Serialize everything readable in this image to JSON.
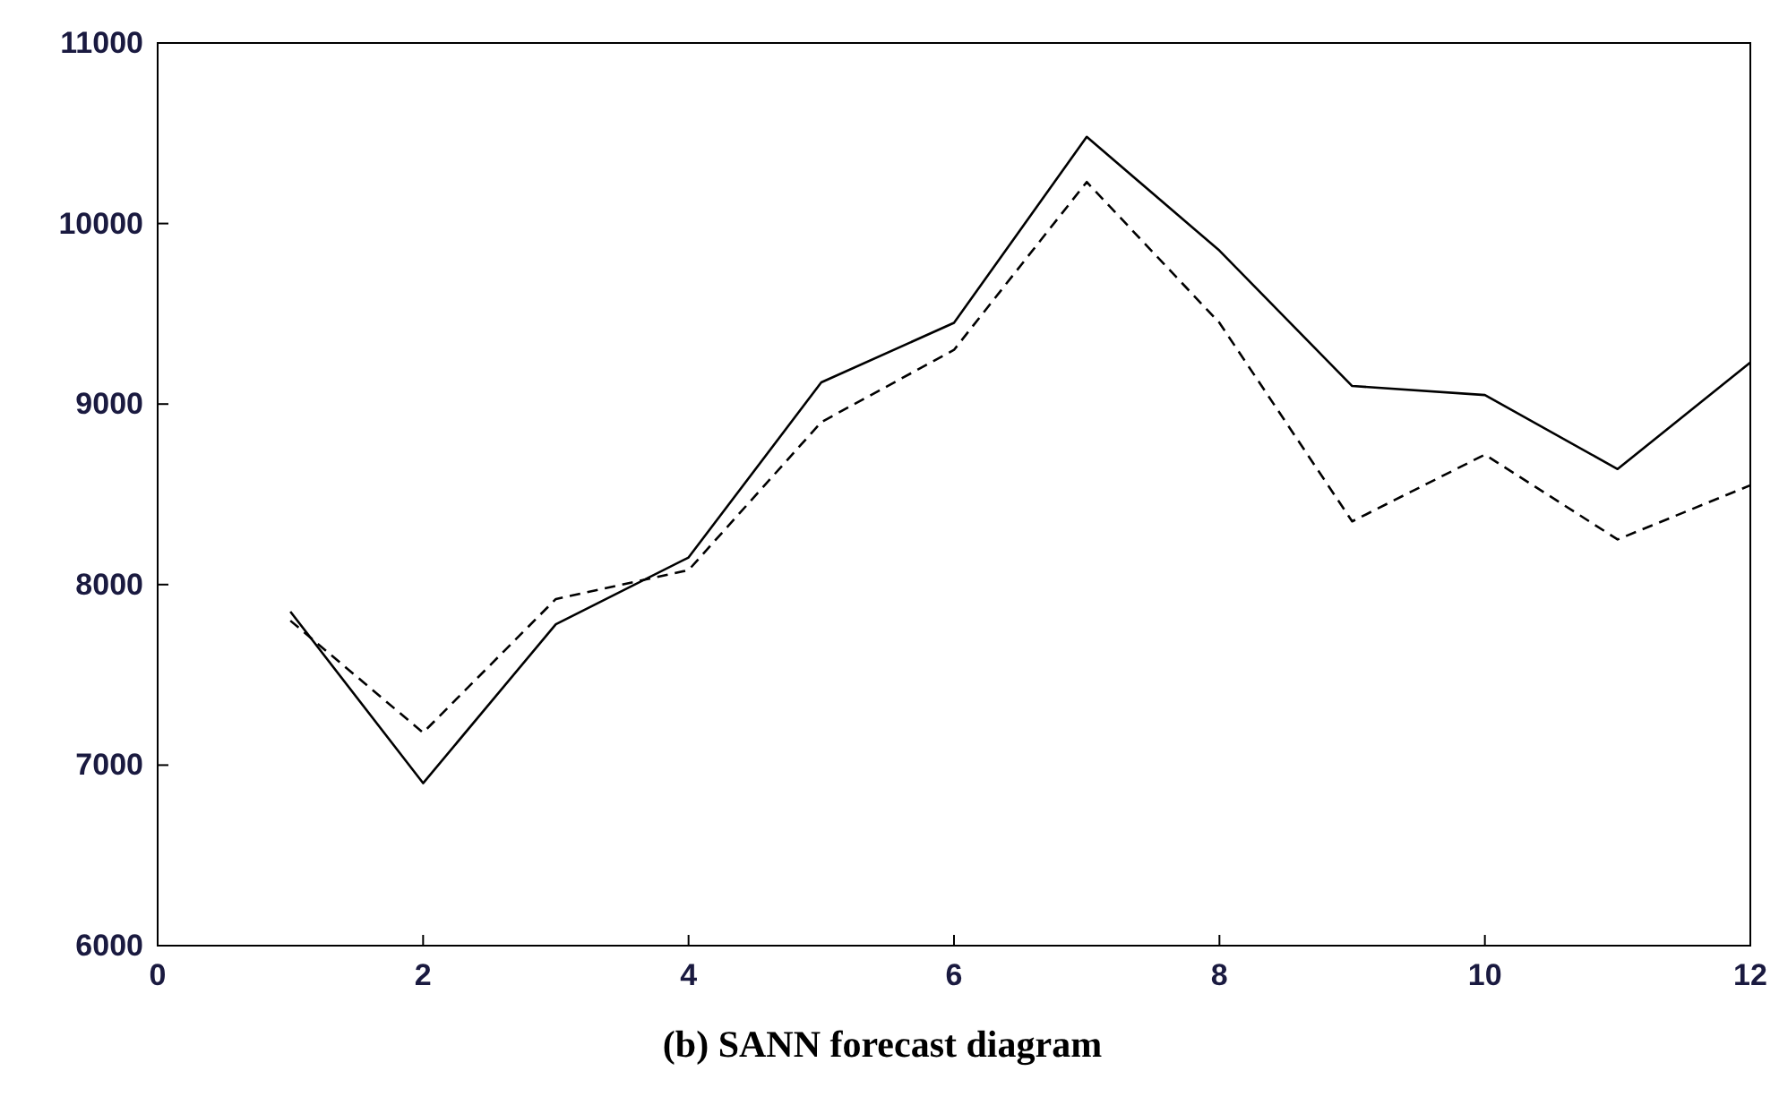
{
  "chart_data": {
    "type": "line",
    "title": "(b) SANN forecast diagram",
    "x": [
      1,
      2,
      3,
      4,
      5,
      6,
      7,
      8,
      9,
      10,
      11,
      12
    ],
    "series": [
      {
        "color": "#000000",
        "line_style": "solid",
        "values": [
          7850,
          6900,
          7780,
          8150,
          9120,
          9450,
          10480,
          9850,
          9100,
          9050,
          8640,
          9230
        ]
      },
      {
        "color": "#000000",
        "line_style": "dashed",
        "values": [
          7800,
          7180,
          7920,
          8080,
          8900,
          9300,
          10230,
          9450,
          8350,
          8720,
          8250,
          8550
        ]
      }
    ],
    "xlim": [
      0,
      12
    ],
    "xticks": [
      0,
      2,
      4,
      6,
      8,
      10,
      12
    ],
    "ylim": [
      6000,
      11000
    ],
    "yticks": [
      6000,
      7000,
      8000,
      9000,
      10000,
      11000
    ],
    "grid": false
  }
}
